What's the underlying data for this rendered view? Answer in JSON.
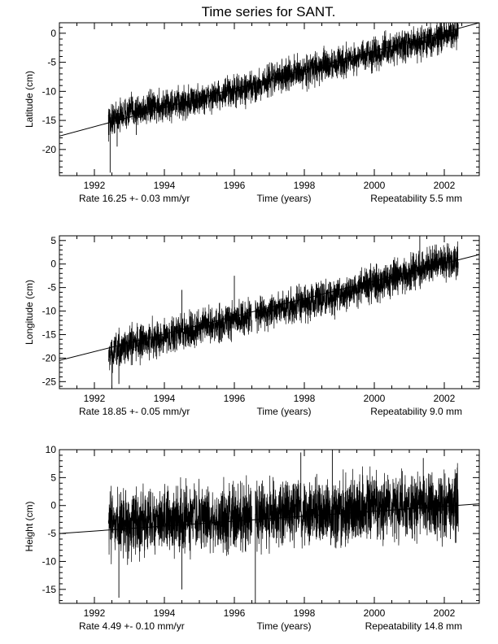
{
  "title": "Time series for SANT.",
  "chart_data": [
    {
      "type": "line",
      "ylabel": "Latitude (cm)",
      "xlabel": "Time (years)",
      "xlim": [
        1991.0,
        2003.0
      ],
      "ylim": [
        -24.5,
        1.8
      ],
      "xticks": [
        "1992",
        "1994",
        "1996",
        "1998",
        "2000",
        "2002"
      ],
      "xtick_values": [
        1992,
        1994,
        1996,
        1998,
        2000,
        2002
      ],
      "yticks": [
        "-20",
        "-15",
        "-10",
        "-5",
        "0"
      ],
      "ytick_values": [
        -20,
        -15,
        -10,
        -5,
        0
      ],
      "rate_text": "Rate  16.25 +- 0.03 mm/yr",
      "repeatability_text": "Repeatability 5.5 mm",
      "trend": {
        "x": [
          1991.0,
          2003.0
        ],
        "y": [
          -17.7,
          1.8
        ]
      },
      "segments": [
        {
          "x": [
            1992.4,
            1993.0,
            1994.0,
            1995.0,
            1996.0,
            1996.5,
            1997.0,
            1998.0,
            1999.0,
            2000.0,
            2001.0,
            2002.0,
            2002.4
          ],
          "y": [
            -15.0,
            -13.5,
            -12.5,
            -11.5,
            -10.0,
            -9.5,
            -8.0,
            -6.5,
            -5.0,
            -3.5,
            -2.0,
            -0.5,
            0.3
          ],
          "spread": 1.3
        }
      ],
      "spikes": [
        {
          "x": 1992.45,
          "y": -24.0
        },
        {
          "x": 1992.65,
          "y": -19.5
        },
        {
          "x": 1993.2,
          "y": -17.5
        }
      ]
    },
    {
      "type": "line",
      "ylabel": "Longitude (cm)",
      "xlabel": "Time (years)",
      "xlim": [
        1991.0,
        2003.0
      ],
      "ylim": [
        -26.5,
        6.0
      ],
      "xticks": [
        "1992",
        "1994",
        "1996",
        "1998",
        "2000",
        "2002"
      ],
      "xtick_values": [
        1992,
        1994,
        1996,
        1998,
        2000,
        2002
      ],
      "yticks": [
        "-25",
        "-20",
        "-15",
        "-10",
        "-5",
        "0",
        "5"
      ],
      "ytick_values": [
        -25,
        -20,
        -15,
        -10,
        -5,
        0,
        5
      ],
      "rate_text": "Rate  18.85 +- 0.05 mm/yr",
      "repeatability_text": "Repeatability 9.0 mm",
      "trend": {
        "x": [
          1991.0,
          2003.0
        ],
        "y": [
          -20.5,
          2.0
        ]
      },
      "segments": [
        {
          "x": [
            1992.4,
            1993.0,
            1994.0,
            1995.0,
            1996.0,
            1996.5
          ],
          "y": [
            -19.5,
            -17.0,
            -15.5,
            -13.5,
            -12.0,
            -11.0
          ],
          "spread": 1.8
        },
        {
          "x": [
            1996.6,
            1997.0,
            1998.0,
            1999.0,
            2000.0,
            2001.0,
            2002.0,
            2002.4
          ],
          "y": [
            -10.5,
            -10.0,
            -8.5,
            -6.5,
            -4.0,
            -2.0,
            0.5,
            1.0
          ],
          "spread": 1.8
        }
      ],
      "spikes": [
        {
          "x": 1992.5,
          "y": -26.0
        },
        {
          "x": 1992.7,
          "y": -25.5
        },
        {
          "x": 2001.3,
          "y": 6.0
        },
        {
          "x": 1996.0,
          "y": -2.5
        },
        {
          "x": 1994.5,
          "y": -5.5
        }
      ]
    },
    {
      "type": "line",
      "ylabel": "Height (cm)",
      "xlabel": "Time (years)",
      "xlim": [
        1991.0,
        2003.0
      ],
      "ylim": [
        -17.5,
        10.0
      ],
      "xticks": [
        "1992",
        "1994",
        "1996",
        "1998",
        "2000",
        "2002"
      ],
      "xtick_values": [
        1992,
        1994,
        1996,
        1998,
        2000,
        2002
      ],
      "yticks": [
        "-15",
        "-10",
        "-5",
        "0",
        "5",
        "10"
      ],
      "ytick_values": [
        -15,
        -10,
        -5,
        0,
        5,
        10
      ],
      "rate_text": "Rate   4.49 +- 0.10 mm/yr",
      "repeatability_text": "Repeatability 14.8 mm",
      "trend": {
        "x": [
          1991.0,
          2003.0
        ],
        "y": [
          -5.0,
          0.3
        ]
      },
      "segments": [
        {
          "x": [
            1992.4,
            1993.0,
            1994.0,
            1995.0,
            1996.0,
            1996.5
          ],
          "y": [
            -3.5,
            -3.0,
            -2.5,
            -2.5,
            -2.0,
            -2.0
          ],
          "spread": 2.8
        },
        {
          "x": [
            1996.6,
            1997.0,
            1998.0,
            1999.0,
            2000.0,
            2001.0,
            2002.0,
            2002.4
          ],
          "y": [
            -1.5,
            -1.5,
            -1.0,
            -1.0,
            -0.5,
            0.0,
            0.0,
            0.3
          ],
          "spread": 2.8
        }
      ],
      "spikes": [
        {
          "x": 1996.6,
          "y": -17.5
        },
        {
          "x": 1992.7,
          "y": -16.5
        },
        {
          "x": 1998.8,
          "y": 10.0
        },
        {
          "x": 1997.9,
          "y": 9.5
        },
        {
          "x": 1994.5,
          "y": -15.0
        },
        {
          "x": 2001.4,
          "y": 8.5
        }
      ]
    }
  ]
}
